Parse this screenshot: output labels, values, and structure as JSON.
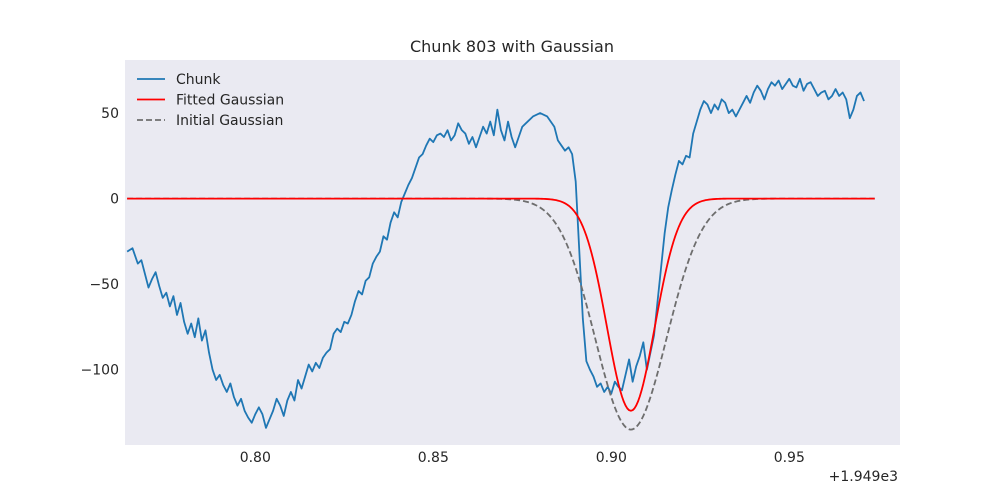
{
  "chart_data": {
    "type": "line",
    "title": "Chunk 803 with Gaussian",
    "xlabel": "",
    "ylabel": "",
    "x_offset_label": "+1.949e3",
    "xlim": [
      0.7634,
      0.9811
    ],
    "ylim": [
      -144,
      81
    ],
    "x_ticks": [
      0.8,
      0.85,
      0.9,
      0.95
    ],
    "x_tick_labels": [
      "0.80",
      "0.85",
      "0.90",
      "0.95"
    ],
    "y_ticks": [
      50,
      0,
      -50,
      -100
    ],
    "y_tick_labels": [
      "50",
      "0",
      "−50",
      "−100"
    ],
    "grid": false,
    "legend_position": "top-left",
    "background_color": "#eaeaf2",
    "series": [
      {
        "name": "Chunk",
        "color": "#1f77b4",
        "style": "solid",
        "points": [
          [
            0.764,
            -31
          ],
          [
            0.7655,
            -29
          ],
          [
            0.767,
            -38
          ],
          [
            0.768,
            -36
          ],
          [
            0.769,
            -44
          ],
          [
            0.77,
            -52
          ],
          [
            0.771,
            -47
          ],
          [
            0.772,
            -43
          ],
          [
            0.773,
            -51
          ],
          [
            0.774,
            -58
          ],
          [
            0.775,
            -55
          ],
          [
            0.776,
            -63
          ],
          [
            0.777,
            -57
          ],
          [
            0.778,
            -68
          ],
          [
            0.779,
            -61
          ],
          [
            0.78,
            -72
          ],
          [
            0.781,
            -79
          ],
          [
            0.782,
            -73
          ],
          [
            0.783,
            -81
          ],
          [
            0.784,
            -70
          ],
          [
            0.785,
            -83
          ],
          [
            0.786,
            -77
          ],
          [
            0.787,
            -90
          ],
          [
            0.788,
            -100
          ],
          [
            0.789,
            -106
          ],
          [
            0.79,
            -103
          ],
          [
            0.791,
            -109
          ],
          [
            0.792,
            -113
          ],
          [
            0.793,
            -108
          ],
          [
            0.794,
            -116
          ],
          [
            0.795,
            -121
          ],
          [
            0.796,
            -117
          ],
          [
            0.797,
            -124
          ],
          [
            0.798,
            -128
          ],
          [
            0.799,
            -131
          ],
          [
            0.8,
            -126
          ],
          [
            0.801,
            -122
          ],
          [
            0.802,
            -126
          ],
          [
            0.803,
            -134
          ],
          [
            0.804,
            -129
          ],
          [
            0.805,
            -124
          ],
          [
            0.806,
            -117
          ],
          [
            0.807,
            -121
          ],
          [
            0.808,
            -127
          ],
          [
            0.809,
            -118
          ],
          [
            0.81,
            -113
          ],
          [
            0.811,
            -118
          ],
          [
            0.812,
            -106
          ],
          [
            0.813,
            -111
          ],
          [
            0.814,
            -104
          ],
          [
            0.815,
            -97
          ],
          [
            0.816,
            -101
          ],
          [
            0.817,
            -96
          ],
          [
            0.818,
            -99
          ],
          [
            0.819,
            -93
          ],
          [
            0.82,
            -90
          ],
          [
            0.821,
            -88
          ],
          [
            0.822,
            -79
          ],
          [
            0.823,
            -76
          ],
          [
            0.824,
            -78
          ],
          [
            0.825,
            -72
          ],
          [
            0.826,
            -73
          ],
          [
            0.827,
            -68
          ],
          [
            0.828,
            -60
          ],
          [
            0.829,
            -54
          ],
          [
            0.83,
            -56
          ],
          [
            0.831,
            -48
          ],
          [
            0.832,
            -46
          ],
          [
            0.833,
            -38
          ],
          [
            0.834,
            -34
          ],
          [
            0.835,
            -31
          ],
          [
            0.836,
            -22
          ],
          [
            0.837,
            -24
          ],
          [
            0.838,
            -14
          ],
          [
            0.839,
            -8
          ],
          [
            0.84,
            -11
          ],
          [
            0.841,
            -2
          ],
          [
            0.842,
            3
          ],
          [
            0.843,
            8
          ],
          [
            0.844,
            12
          ],
          [
            0.845,
            18
          ],
          [
            0.846,
            24
          ],
          [
            0.847,
            26
          ],
          [
            0.848,
            31
          ],
          [
            0.849,
            35
          ],
          [
            0.85,
            33
          ],
          [
            0.851,
            37
          ],
          [
            0.852,
            38
          ],
          [
            0.853,
            36
          ],
          [
            0.854,
            40
          ],
          [
            0.855,
            34
          ],
          [
            0.856,
            37
          ],
          [
            0.857,
            44
          ],
          [
            0.858,
            40
          ],
          [
            0.859,
            38
          ],
          [
            0.86,
            32
          ],
          [
            0.861,
            36
          ],
          [
            0.862,
            30
          ],
          [
            0.863,
            36
          ],
          [
            0.864,
            42
          ],
          [
            0.865,
            38
          ],
          [
            0.866,
            45
          ],
          [
            0.867,
            37
          ],
          [
            0.868,
            52
          ],
          [
            0.869,
            40
          ],
          [
            0.87,
            34
          ],
          [
            0.871,
            45
          ],
          [
            0.872,
            36
          ],
          [
            0.873,
            30
          ],
          [
            0.874,
            36
          ],
          [
            0.875,
            42
          ],
          [
            0.876,
            44
          ],
          [
            0.878,
            48
          ],
          [
            0.88,
            50
          ],
          [
            0.882,
            48
          ],
          [
            0.884,
            42
          ],
          [
            0.885,
            34
          ],
          [
            0.886,
            31
          ],
          [
            0.887,
            28
          ],
          [
            0.888,
            30
          ],
          [
            0.889,
            26
          ],
          [
            0.89,
            10
          ],
          [
            0.891,
            -30
          ],
          [
            0.892,
            -70
          ],
          [
            0.893,
            -95
          ],
          [
            0.894,
            -100
          ],
          [
            0.895,
            -104
          ],
          [
            0.896,
            -110
          ],
          [
            0.897,
            -108
          ],
          [
            0.898,
            -113
          ],
          [
            0.899,
            -110
          ],
          [
            0.9,
            -114
          ],
          [
            0.901,
            -107
          ],
          [
            0.902,
            -110
          ],
          [
            0.903,
            -112
          ],
          [
            0.904,
            -103
          ],
          [
            0.905,
            -94
          ],
          [
            0.906,
            -107
          ],
          [
            0.907,
            -98
          ],
          [
            0.908,
            -92
          ],
          [
            0.909,
            -84
          ],
          [
            0.91,
            -100
          ],
          [
            0.911,
            -90
          ],
          [
            0.912,
            -80
          ],
          [
            0.913,
            -60
          ],
          [
            0.914,
            -40
          ],
          [
            0.915,
            -20
          ],
          [
            0.916,
            -5
          ],
          [
            0.917,
            5
          ],
          [
            0.918,
            14
          ],
          [
            0.919,
            22
          ],
          [
            0.92,
            20
          ],
          [
            0.921,
            25
          ],
          [
            0.922,
            24
          ],
          [
            0.923,
            38
          ],
          [
            0.924,
            45
          ],
          [
            0.925,
            52
          ],
          [
            0.926,
            57
          ],
          [
            0.927,
            55
          ],
          [
            0.928,
            50
          ],
          [
            0.929,
            55
          ],
          [
            0.93,
            52
          ],
          [
            0.931,
            58
          ],
          [
            0.932,
            56
          ],
          [
            0.933,
            50
          ],
          [
            0.934,
            52
          ],
          [
            0.935,
            48
          ],
          [
            0.936,
            52
          ],
          [
            0.937,
            56
          ],
          [
            0.938,
            60
          ],
          [
            0.939,
            56
          ],
          [
            0.94,
            62
          ],
          [
            0.941,
            66
          ],
          [
            0.942,
            63
          ],
          [
            0.943,
            58
          ],
          [
            0.944,
            64
          ],
          [
            0.945,
            68
          ],
          [
            0.946,
            66
          ],
          [
            0.947,
            69
          ],
          [
            0.948,
            64
          ],
          [
            0.949,
            67
          ],
          [
            0.95,
            70
          ],
          [
            0.951,
            66
          ],
          [
            0.952,
            65
          ],
          [
            0.953,
            70
          ],
          [
            0.954,
            63
          ],
          [
            0.955,
            67
          ],
          [
            0.956,
            68
          ],
          [
            0.957,
            64
          ],
          [
            0.958,
            60
          ],
          [
            0.959,
            62
          ],
          [
            0.96,
            63
          ],
          [
            0.961,
            58
          ],
          [
            0.962,
            60
          ],
          [
            0.963,
            64
          ],
          [
            0.964,
            60
          ],
          [
            0.965,
            62
          ],
          [
            0.966,
            58
          ],
          [
            0.967,
            47
          ],
          [
            0.968,
            52
          ],
          [
            0.969,
            60
          ],
          [
            0.97,
            62
          ],
          [
            0.971,
            57
          ]
        ]
      },
      {
        "name": "Fitted Gaussian",
        "color": "#ff0000",
        "style": "solid",
        "gaussian": {
          "amplitude": -124,
          "center": 0.9055,
          "sigma": 0.0067
        },
        "x_range": [
          0.764,
          0.974
        ]
      },
      {
        "name": "Initial Gaussian",
        "color": "#6e6e6e",
        "style": "dashed",
        "gaussian": {
          "amplitude": -135,
          "center": 0.9055,
          "sigma": 0.01
        },
        "x_range": [
          0.764,
          0.974
        ]
      }
    ]
  }
}
